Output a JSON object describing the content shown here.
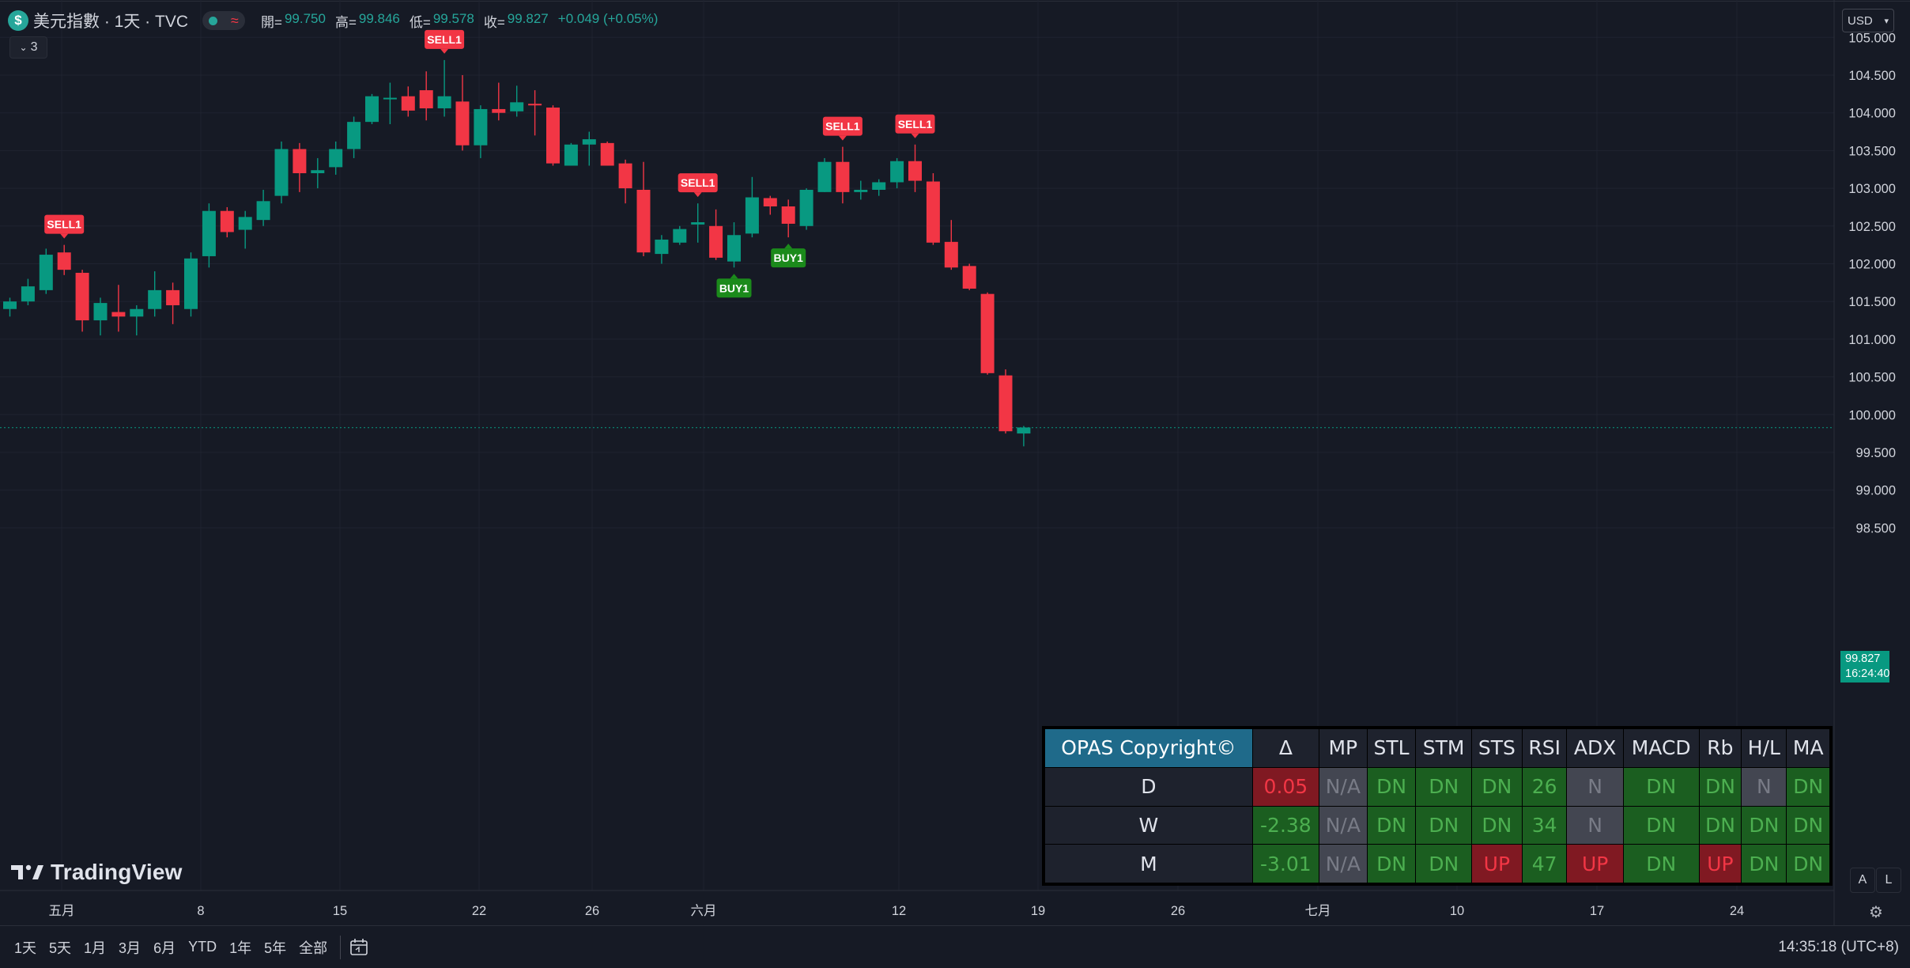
{
  "header": {
    "symbol_icon": "$",
    "symbol": "美元指數 · 1天 · TVC",
    "status_wave": "≈",
    "ohlc": [
      {
        "k": "開=",
        "v": "99.750"
      },
      {
        "k": "高=",
        "v": "99.846"
      },
      {
        "k": "低=",
        "v": "99.578"
      },
      {
        "k": "收=",
        "v": "99.827"
      }
    ],
    "change": "+0.049 (+0.05%)",
    "indicators_count": "3",
    "currency": "USD"
  },
  "chart_data": {
    "type": "candlestick",
    "candles": [
      [
        101.4,
        101.55,
        101.3,
        101.5
      ],
      [
        101.5,
        101.8,
        101.45,
        101.7
      ],
      [
        101.65,
        102.2,
        101.6,
        102.12
      ],
      [
        102.15,
        102.25,
        101.85,
        101.92
      ],
      [
        101.88,
        101.92,
        101.1,
        101.25
      ],
      [
        101.25,
        101.55,
        101.05,
        101.48
      ],
      [
        101.36,
        101.72,
        101.1,
        101.3
      ],
      [
        101.3,
        101.45,
        101.05,
        101.4
      ],
      [
        101.4,
        101.9,
        101.3,
        101.65
      ],
      [
        101.65,
        101.75,
        101.2,
        101.45
      ],
      [
        101.4,
        102.15,
        101.3,
        102.07
      ],
      [
        102.1,
        102.8,
        101.95,
        102.7
      ],
      [
        102.7,
        102.75,
        102.35,
        102.42
      ],
      [
        102.45,
        102.7,
        102.2,
        102.62
      ],
      [
        102.58,
        102.98,
        102.5,
        102.83
      ],
      [
        102.9,
        103.62,
        102.8,
        103.52
      ],
      [
        103.52,
        103.6,
        102.95,
        103.2
      ],
      [
        103.2,
        103.4,
        103.0,
        103.24
      ],
      [
        103.28,
        103.62,
        103.18,
        103.52
      ],
      [
        103.52,
        103.95,
        103.4,
        103.88
      ],
      [
        103.88,
        104.25,
        103.85,
        104.22
      ],
      [
        104.2,
        104.4,
        103.85,
        104.2
      ],
      [
        104.22,
        104.35,
        103.95,
        104.03
      ],
      [
        104.3,
        104.55,
        103.9,
        104.06
      ],
      [
        104.06,
        104.7,
        103.95,
        104.22
      ],
      [
        104.15,
        104.5,
        103.5,
        103.57
      ],
      [
        103.57,
        104.1,
        103.4,
        104.05
      ],
      [
        104.05,
        104.4,
        103.9,
        104.0
      ],
      [
        104.02,
        104.36,
        103.95,
        104.14
      ],
      [
        104.12,
        104.3,
        103.7,
        104.1
      ],
      [
        104.07,
        104.1,
        103.3,
        103.33
      ],
      [
        103.3,
        103.6,
        103.3,
        103.58
      ],
      [
        103.58,
        103.75,
        103.3,
        103.65
      ],
      [
        103.6,
        103.62,
        103.3,
        103.3
      ],
      [
        103.33,
        103.38,
        102.8,
        103.0
      ],
      [
        102.98,
        103.35,
        102.1,
        102.15
      ],
      [
        102.13,
        102.38,
        102.0,
        102.32
      ],
      [
        102.28,
        102.5,
        102.25,
        102.46
      ],
      [
        102.52,
        102.8,
        102.28,
        102.55
      ],
      [
        102.5,
        102.72,
        102.05,
        102.08
      ],
      [
        102.03,
        102.55,
        101.95,
        102.38
      ],
      [
        102.4,
        103.15,
        102.35,
        102.88
      ],
      [
        102.87,
        102.9,
        102.65,
        102.76
      ],
      [
        102.76,
        102.85,
        102.35,
        102.53
      ],
      [
        102.5,
        103.0,
        102.45,
        102.98
      ],
      [
        102.95,
        103.4,
        102.95,
        103.35
      ],
      [
        103.35,
        103.55,
        102.8,
        102.95
      ],
      [
        102.95,
        103.1,
        102.85,
        102.98
      ],
      [
        102.98,
        103.12,
        102.9,
        103.08
      ],
      [
        103.08,
        103.4,
        103.0,
        103.36
      ],
      [
        103.36,
        103.58,
        102.95,
        103.1
      ],
      [
        103.09,
        103.2,
        102.25,
        102.28
      ],
      [
        102.29,
        102.58,
        101.92,
        101.95
      ],
      [
        101.97,
        102.0,
        101.65,
        101.67
      ],
      [
        101.6,
        101.62,
        100.53,
        100.55
      ],
      [
        100.52,
        100.6,
        99.75,
        99.78
      ],
      [
        99.75,
        99.85,
        99.58,
        99.83
      ]
    ],
    "x_ticks": [
      "五月",
      "8",
      "15",
      "22",
      "26",
      "六月",
      "12",
      "19",
      "26",
      "七月",
      "10",
      "17",
      "24"
    ],
    "y_ticks": [
      "105.000",
      "104.500",
      "104.000",
      "103.500",
      "103.000",
      "102.500",
      "102.000",
      "101.500",
      "101.000",
      "100.500",
      "100.000",
      "99.500",
      "99.000",
      "98.500"
    ],
    "ylim": [
      98.2,
      105.3
    ],
    "last_price": "99.827",
    "countdown": "16:24:40",
    "signals": [
      {
        "label": "SELL1",
        "index": 3,
        "side": "sell"
      },
      {
        "label": "SELL1",
        "index": 24,
        "side": "sell"
      },
      {
        "label": "SELL1",
        "index": 38,
        "side": "sell"
      },
      {
        "label": "BUY1",
        "index": 40,
        "side": "buy"
      },
      {
        "label": "BUY1",
        "index": 43,
        "side": "buy"
      },
      {
        "label": "SELL1",
        "index": 46,
        "side": "sell"
      },
      {
        "label": "SELL1",
        "index": 50,
        "side": "sell"
      }
    ],
    "colors": {
      "up": "#089981",
      "down": "#f23645",
      "sell_label": "#f23645",
      "buy_label": "#1b8a1b"
    }
  },
  "opas_table": {
    "title": "OPAS Copyright©",
    "columns": [
      "Δ",
      "MP",
      "STL",
      "STM",
      "STS",
      "RSI",
      "ADX",
      "MACD",
      "Rb",
      "H/L",
      "MA"
    ],
    "rows": [
      {
        "label": "D",
        "cells": [
          {
            "text": "0.05",
            "bg": "#801922",
            "fg": "#f23645"
          },
          {
            "text": "N/A",
            "bg": "#434651",
            "fg": "#787b86"
          },
          {
            "text": "DN",
            "bg": "#1b5e20",
            "fg": "#4caf50"
          },
          {
            "text": "DN",
            "bg": "#1b5e20",
            "fg": "#4caf50"
          },
          {
            "text": "DN",
            "bg": "#1b5e20",
            "fg": "#4caf50"
          },
          {
            "text": "26",
            "bg": "#1b5e20",
            "fg": "#4caf50"
          },
          {
            "text": "N",
            "bg": "#434651",
            "fg": "#787b86"
          },
          {
            "text": "DN",
            "bg": "#1b5e20",
            "fg": "#4caf50"
          },
          {
            "text": "DN",
            "bg": "#1b5e20",
            "fg": "#4caf50"
          },
          {
            "text": "N",
            "bg": "#434651",
            "fg": "#787b86"
          },
          {
            "text": "DN",
            "bg": "#1b5e20",
            "fg": "#4caf50"
          }
        ]
      },
      {
        "label": "W",
        "cells": [
          {
            "text": "-2.38",
            "bg": "#1b5e20",
            "fg": "#4caf50"
          },
          {
            "text": "N/A",
            "bg": "#434651",
            "fg": "#787b86"
          },
          {
            "text": "DN",
            "bg": "#1b5e20",
            "fg": "#4caf50"
          },
          {
            "text": "DN",
            "bg": "#1b5e20",
            "fg": "#4caf50"
          },
          {
            "text": "DN",
            "bg": "#1b5e20",
            "fg": "#4caf50"
          },
          {
            "text": "34",
            "bg": "#1b5e20",
            "fg": "#4caf50"
          },
          {
            "text": "N",
            "bg": "#434651",
            "fg": "#787b86"
          },
          {
            "text": "DN",
            "bg": "#1b5e20",
            "fg": "#4caf50"
          },
          {
            "text": "DN",
            "bg": "#1b5e20",
            "fg": "#4caf50"
          },
          {
            "text": "DN",
            "bg": "#1b5e20",
            "fg": "#4caf50"
          },
          {
            "text": "DN",
            "bg": "#1b5e20",
            "fg": "#4caf50"
          }
        ]
      },
      {
        "label": "M",
        "cells": [
          {
            "text": "-3.01",
            "bg": "#1b5e20",
            "fg": "#4caf50"
          },
          {
            "text": "N/A",
            "bg": "#434651",
            "fg": "#787b86"
          },
          {
            "text": "DN",
            "bg": "#1b5e20",
            "fg": "#4caf50"
          },
          {
            "text": "DN",
            "bg": "#1b5e20",
            "fg": "#4caf50"
          },
          {
            "text": "UP",
            "bg": "#801922",
            "fg": "#f23645"
          },
          {
            "text": "47",
            "bg": "#1b5e20",
            "fg": "#4caf50"
          },
          {
            "text": "UP",
            "bg": "#801922",
            "fg": "#f23645"
          },
          {
            "text": "DN",
            "bg": "#1b5e20",
            "fg": "#4caf50"
          },
          {
            "text": "UP",
            "bg": "#801922",
            "fg": "#f23645"
          },
          {
            "text": "DN",
            "bg": "#1b5e20",
            "fg": "#4caf50"
          },
          {
            "text": "DN",
            "bg": "#1b5e20",
            "fg": "#4caf50"
          }
        ]
      }
    ]
  },
  "axis_buttons": {
    "auto": "A",
    "log": "L"
  },
  "logo": {
    "text": "TradingView"
  },
  "bottom_toolbar": {
    "ranges": [
      "1天",
      "5天",
      "1月",
      "3月",
      "6月",
      "YTD",
      "1年",
      "5年",
      "全部"
    ],
    "clock": "14:35:18 (UTC+8)"
  }
}
